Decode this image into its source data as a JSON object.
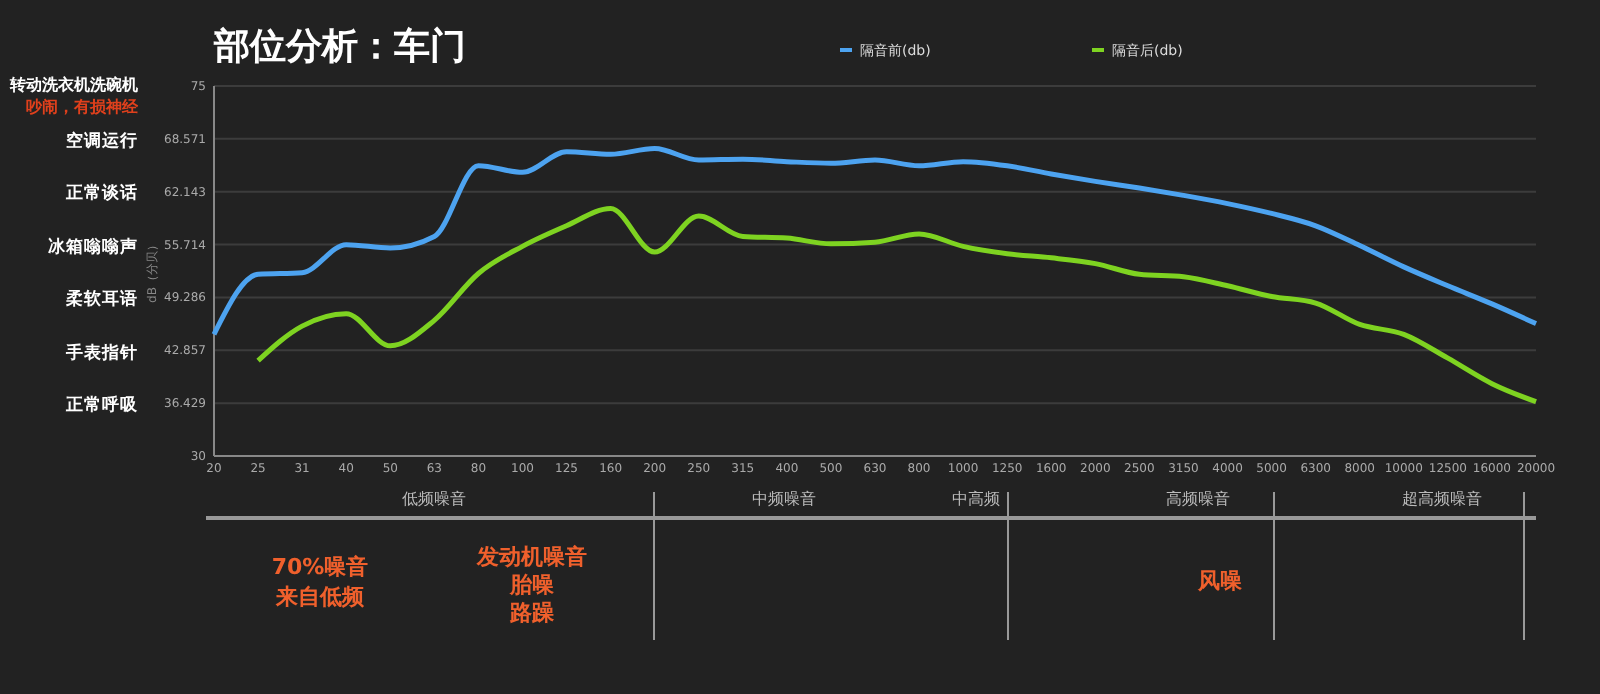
{
  "chart_data": {
    "type": "line",
    "title": "部位分析：车门",
    "ylabel": "dB（分贝）",
    "legend": "top",
    "grid": "y",
    "marker": "none",
    "line_style": "solid",
    "categories": [
      "20",
      "25",
      "31",
      "40",
      "50",
      "63",
      "80",
      "100",
      "125",
      "160",
      "200",
      "250",
      "315",
      "400",
      "500",
      "630",
      "800",
      "1000",
      "1250",
      "1600",
      "2000",
      "2500",
      "3150",
      "4000",
      "5000",
      "6300",
      "8000",
      "10000",
      "12500",
      "16000",
      "20000"
    ],
    "ylim": [
      30,
      75
    ],
    "yticks": [
      30,
      36.429,
      42.857,
      49.286,
      55.714,
      62.143,
      68.571,
      75
    ],
    "series": [
      {
        "name": "隔音前(db)",
        "color": "#4da3f0",
        "values": [
          44.8,
          52.1,
          52.3,
          55.7,
          55.3,
          56.7,
          65.3,
          64.5,
          67.0,
          66.7,
          67.4,
          66.0,
          66.1,
          65.8,
          65.6,
          66.0,
          65.3,
          65.8,
          65.3,
          64.3,
          63.4,
          62.6,
          61.7,
          60.7,
          59.5,
          58.0,
          55.6,
          53.0,
          50.7,
          48.5,
          46.1
        ]
      },
      {
        "name": "隔音后(db)",
        "color": "#7ed321",
        "values": [
          null,
          41.6,
          45.8,
          47.3,
          43.4,
          46.5,
          52.2,
          55.5,
          58.0,
          60.1,
          54.8,
          59.2,
          56.7,
          56.5,
          55.8,
          56.0,
          57.0,
          55.5,
          54.6,
          54.1,
          53.4,
          52.1,
          51.8,
          50.7,
          49.4,
          48.6,
          46.0,
          44.8,
          41.9,
          38.8,
          36.6
        ]
      }
    ],
    "annotations": [
      "转动洗衣机洗碗机",
      "吵闹，有损神经",
      "空调运行",
      "正常谈话",
      "冰箱嗡嗡声",
      "柔软耳语",
      "手表指针",
      "正常呼吸",
      "低频噪音",
      "中频噪音",
      "中高频",
      "高频噪音",
      "超高频噪音",
      "70%噪音",
      "来自低频",
      "发动机噪音",
      "胎噪",
      "路躁",
      "风噪"
    ]
  }
}
